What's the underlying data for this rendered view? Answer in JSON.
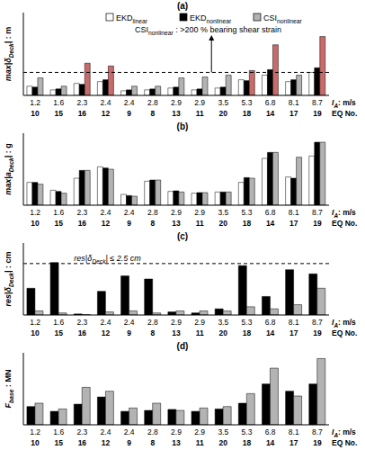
{
  "chart_data": [
    {
      "type": "bar",
      "title": "(a)",
      "ylabel": [
        {
          "text": "max|δ",
          "italic": true
        },
        {
          "text": "Deck",
          "sub": true,
          "italic": true
        },
        {
          "text": "|",
          "italic": true
        },
        {
          "text": " : m"
        }
      ],
      "xlabel_top": [
        {
          "text": "I",
          "italic": true
        },
        {
          "text": "A",
          "sub": true,
          "italic": true
        },
        {
          "text": ": m/s"
        }
      ],
      "xlabel": "EQ No.",
      "IA_values": [
        1.2,
        1.6,
        2.3,
        2.4,
        2.4,
        2.8,
        2.9,
        2.9,
        3.5,
        5.3,
        6.8,
        8.1,
        8.7
      ],
      "categories": [
        10,
        15,
        16,
        12,
        9,
        8,
        13,
        11,
        20,
        18,
        14,
        17,
        19
      ],
      "ylim": [
        0,
        0.9
      ],
      "tick_labels": "x",
      "legend": "top",
      "reference_line": 0.25,
      "annotation": [
        {
          "text": "CSI"
        },
        {
          "text": "nonlinear",
          "sub": true
        },
        {
          "text": " : >200 % bearing shear strain"
        }
      ],
      "series": [
        {
          "name": "EKD",
          "subscript": "linear",
          "color": "#ffffff",
          "values": [
            0.1,
            0.06,
            0.13,
            0.15,
            0.05,
            0.06,
            0.08,
            0.06,
            0.08,
            0.17,
            0.22,
            0.15,
            0.25
          ]
        },
        {
          "name": "EKD",
          "subscript": "nonlinear",
          "color": "#000000",
          "values": [
            0.09,
            0.07,
            0.12,
            0.17,
            0.06,
            0.07,
            0.09,
            0.07,
            0.09,
            0.16,
            0.28,
            0.17,
            0.3
          ]
        },
        {
          "name": "CSI",
          "subscript": "nonlinear",
          "color": "#b3b3b3",
          "values": [
            0.19,
            0.1,
            0.35,
            0.32,
            0.1,
            0.1,
            0.19,
            0.2,
            0.22,
            0.27,
            0.55,
            0.22,
            0.64
          ],
          "colors": [
            "#b3b3b3",
            "#b3b3b3",
            "#c96b6b",
            "#c96b6b",
            "#b3b3b3",
            "#b3b3b3",
            "#b3b3b3",
            "#b3b3b3",
            "#b3b3b3",
            "#c96b6b",
            "#c96b6b",
            "#b3b3b3",
            "#c96b6b"
          ]
        }
      ]
    },
    {
      "type": "bar",
      "title": "(b)",
      "ylabel": [
        {
          "text": "max|a",
          "italic": true
        },
        {
          "text": "Deck",
          "sub": true,
          "italic": true
        },
        {
          "text": "|",
          "italic": true
        },
        {
          "text": " : g"
        }
      ],
      "xlabel_top": [
        {
          "text": "I",
          "italic": true
        },
        {
          "text": "A",
          "sub": true,
          "italic": true
        },
        {
          "text": ": m/s"
        }
      ],
      "xlabel": "EQ No.",
      "IA_values": [
        1.2,
        1.6,
        2.3,
        2.4,
        2.4,
        2.8,
        2.9,
        2.9,
        3.5,
        5.3,
        6.8,
        8.1,
        8.7
      ],
      "categories": [
        10,
        15,
        16,
        12,
        9,
        8,
        13,
        11,
        20,
        18,
        14,
        17,
        19
      ],
      "ylim": [
        0,
        1.2
      ],
      "tick_labels": "x",
      "series": [
        {
          "name": "EKD",
          "subscript": "linear",
          "color": "#ffffff",
          "values": [
            0.38,
            0.25,
            0.45,
            0.64,
            0.18,
            0.4,
            0.23,
            0.2,
            0.22,
            0.38,
            0.78,
            0.47,
            0.82
          ]
        },
        {
          "name": "EKD",
          "subscript": "nonlinear",
          "color": "#000000",
          "values": [
            0.38,
            0.23,
            0.58,
            0.62,
            0.16,
            0.42,
            0.24,
            0.21,
            0.22,
            0.46,
            0.88,
            0.45,
            1.05
          ]
        },
        {
          "name": "CSI",
          "subscript": "nonlinear",
          "color": "#b3b3b3",
          "values": [
            0.35,
            0.2,
            0.58,
            0.6,
            0.15,
            0.42,
            0.22,
            0.21,
            0.22,
            0.45,
            0.88,
            0.8,
            1.05
          ]
        }
      ]
    },
    {
      "type": "bar",
      "title": "(c)",
      "ylabel": [
        {
          "text": "res|δ",
          "italic": true
        },
        {
          "text": "Deck",
          "sub": true,
          "italic": true
        },
        {
          "text": "|",
          "italic": true
        },
        {
          "text": " : cm"
        }
      ],
      "xlabel_top": [
        {
          "text": "I",
          "italic": true
        },
        {
          "text": "A",
          "sub": true,
          "italic": true
        },
        {
          "text": ": m/s"
        }
      ],
      "xlabel": "EQ No.",
      "IA_values": [
        1.2,
        1.6,
        2.3,
        2.4,
        2.4,
        2.8,
        2.9,
        2.9,
        3.5,
        5.3,
        6.8,
        8.1,
        8.7
      ],
      "categories": [
        10,
        15,
        16,
        12,
        9,
        8,
        13,
        11,
        20,
        18,
        14,
        17,
        19
      ],
      "ylim": [
        0,
        3.5
      ],
      "tick_labels": "x",
      "reference_line": 2.5,
      "reference_label": [
        {
          "text": "res|δ",
          "italic": true
        },
        {
          "text": "Deck",
          "sub": true,
          "italic": true
        },
        {
          "text": "| ≤ 2.5 cm",
          "italic": true
        }
      ],
      "series": [
        {
          "name": "EKD",
          "subscript": "nonlinear",
          "color": "#000000",
          "values": [
            1.3,
            2.55,
            0.05,
            1.15,
            1.9,
            1.75,
            0.15,
            0.1,
            0.3,
            2.4,
            0.9,
            2.2,
            2.0
          ]
        },
        {
          "name": "CSI",
          "subscript": "nonlinear",
          "color": "#b3b3b3",
          "values": [
            0.2,
            0.1,
            0.02,
            0.15,
            0.2,
            0.1,
            0.2,
            0.2,
            0.2,
            0.4,
            0.3,
            0.5,
            1.3
          ]
        }
      ]
    },
    {
      "type": "bar",
      "title": "(d)",
      "ylabel": [
        {
          "text": "F",
          "italic": true
        },
        {
          "text": "base",
          "sub": true,
          "italic": true
        },
        {
          "text": " : MN"
        }
      ],
      "xlabel_top": [
        {
          "text": "I",
          "italic": true
        },
        {
          "text": "A",
          "sub": true,
          "italic": true
        },
        {
          "text": ": m/s"
        }
      ],
      "xlabel": "EQ No.",
      "IA_values": [
        1.2,
        1.6,
        2.3,
        2.4,
        2.4,
        2.8,
        2.9,
        2.9,
        3.5,
        5.3,
        6.8,
        8.1,
        8.7
      ],
      "categories": [
        10,
        15,
        16,
        12,
        9,
        8,
        13,
        11,
        20,
        18,
        14,
        17,
        19
      ],
      "ylim": [
        0,
        1.5
      ],
      "tick_labels": "x",
      "series": [
        {
          "name": "EKD",
          "subscript": "nonlinear",
          "color": "#000000",
          "values": [
            0.38,
            0.28,
            0.43,
            0.58,
            0.28,
            0.3,
            0.32,
            0.28,
            0.33,
            0.45,
            0.85,
            0.7,
            0.85
          ]
        },
        {
          "name": "CSI",
          "subscript": "nonlinear",
          "color": "#b3b3b3",
          "values": [
            0.45,
            0.33,
            0.78,
            0.7,
            0.35,
            0.45,
            0.3,
            0.35,
            0.38,
            0.65,
            1.18,
            0.6,
            1.38
          ]
        }
      ]
    }
  ]
}
